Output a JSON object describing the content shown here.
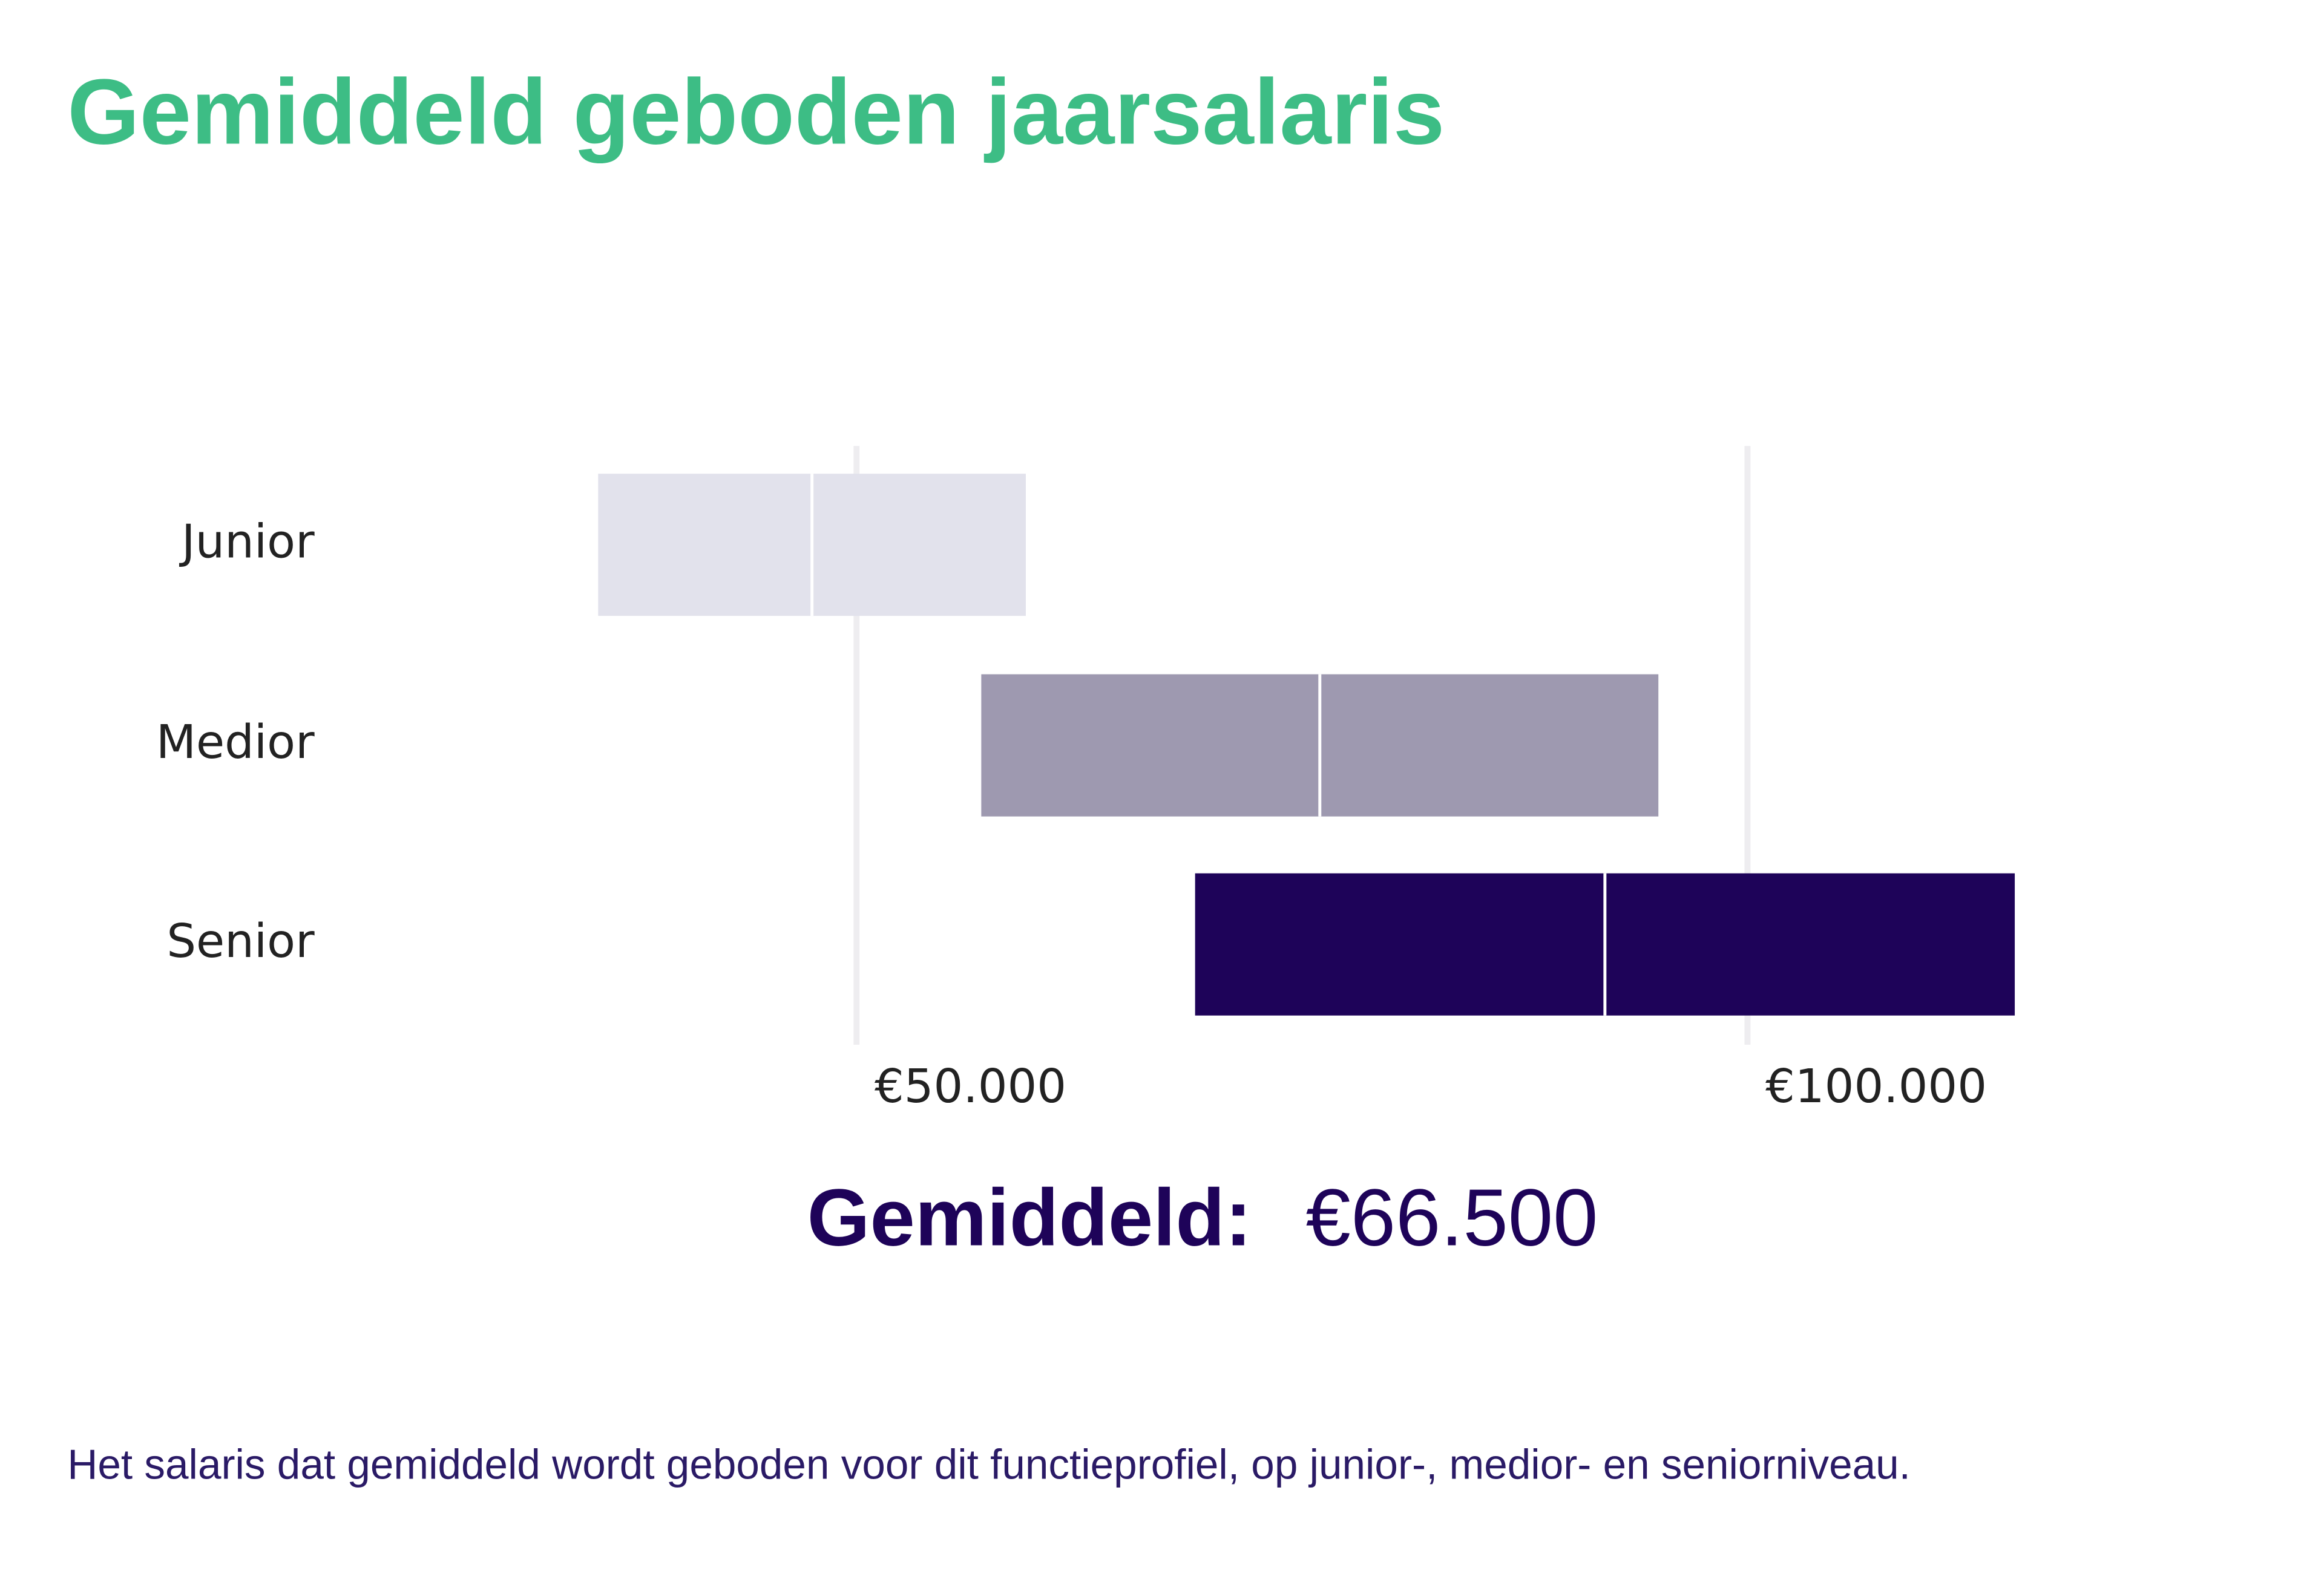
{
  "chart_data": {
    "type": "range",
    "title": "Gemiddeld geboden jaarsalaris",
    "categories": [
      "Junior",
      "Medior",
      "Senior"
    ],
    "low": [
      35500,
      57000,
      69000
    ],
    "median": [
      47500,
      76000,
      92000
    ],
    "high": [
      59500,
      95000,
      115000
    ],
    "colors": [
      "#e2e2ec",
      "#9e99b0",
      "#1e0359"
    ],
    "xlim": [
      30000,
      120000
    ],
    "xticks": [
      {
        "value": 50000,
        "label": "€50.000"
      },
      {
        "value": 100000,
        "label": "€100.000"
      }
    ],
    "grid": true,
    "average_label": "Gemiddeld:",
    "average_value": "€66.500",
    "footnote": "Het salaris dat gemiddeld wordt geboden voor dit functieprofiel, op junior-, medior- en seniorniveau."
  }
}
